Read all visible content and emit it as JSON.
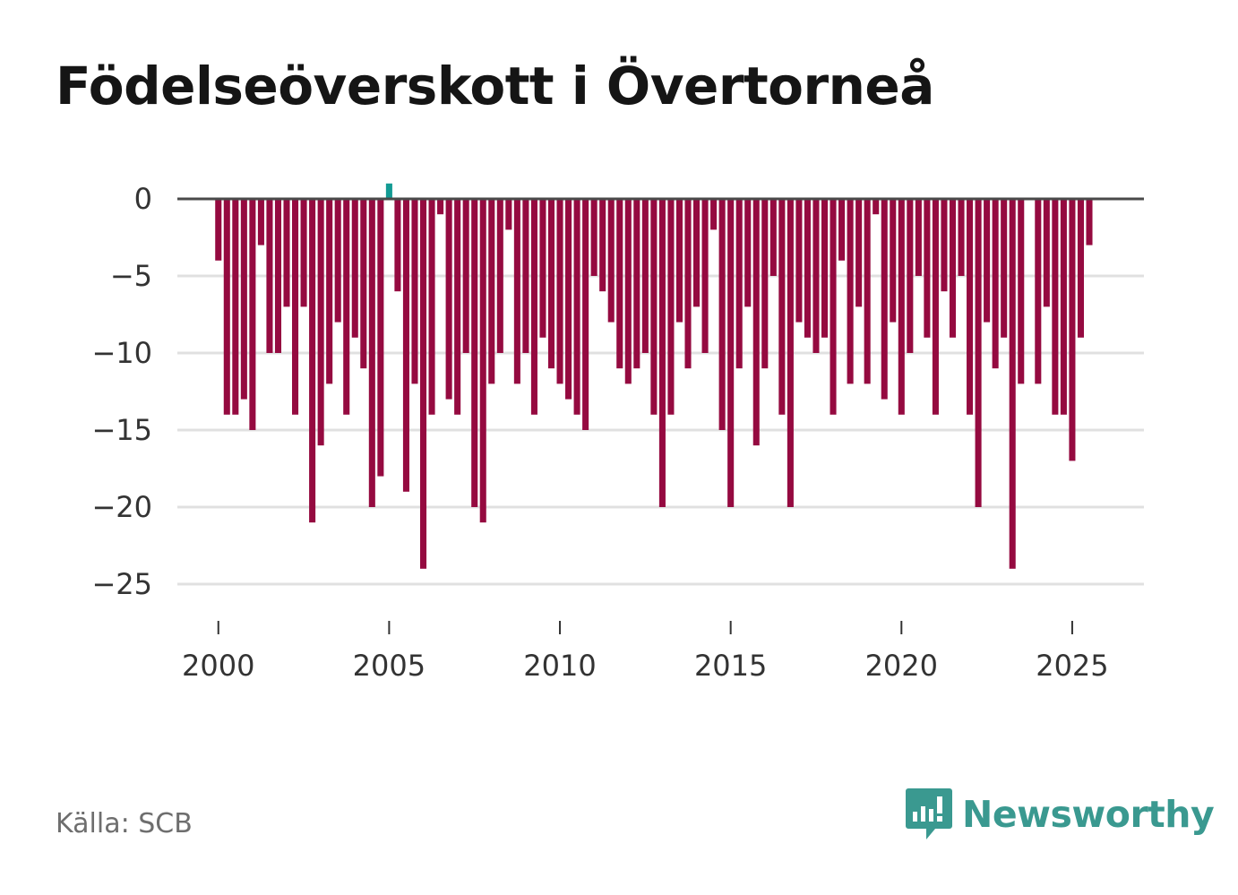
{
  "title": "Födelseöverskott i Övertorneå",
  "source": "Källa: SCB",
  "brand": {
    "name": "Newsworthy",
    "icon": "newsworthy-logo-icon"
  },
  "colors": {
    "negative": "#950a40",
    "positive": "#139b94",
    "zero_line": "#4a4a4a",
    "grid": "#e0e0e0",
    "brand": "#3a9990"
  },
  "chart_data": {
    "type": "bar",
    "title": "Födelseöverskott i Övertorneå",
    "xlabel": "",
    "ylabel": "",
    "frequency": "quarterly",
    "x_start": 2000.0,
    "x_step": 0.25,
    "xlim": [
      1998.8,
      2027.1
    ],
    "ylim": [
      -27,
      0.8
    ],
    "y_ticks": [
      0,
      -5,
      -10,
      -15,
      -20,
      -25
    ],
    "y_tick_labels": [
      "0",
      "−5",
      "−10",
      "−15",
      "−20",
      "−25"
    ],
    "x_ticks": [
      2000,
      2005,
      2010,
      2015,
      2020,
      2025
    ],
    "x_tick_labels": [
      "2000",
      "2005",
      "2010",
      "2015",
      "2020",
      "2025"
    ],
    "values": [
      -4,
      -14,
      -14,
      -13,
      -15,
      -3,
      -10,
      -10,
      -7,
      -14,
      -7,
      -21,
      -16,
      -12,
      -8,
      -14,
      -9,
      -11,
      -20,
      -18,
      1,
      -6,
      -19,
      -12,
      -24,
      -14,
      -1,
      -13,
      -14,
      -10,
      -20,
      -21,
      -12,
      -10,
      -2,
      -12,
      -10,
      -14,
      -9,
      -11,
      -12,
      -13,
      -14,
      -15,
      -5,
      -6,
      -8,
      -11,
      -12,
      -11,
      -10,
      -14,
      -20,
      -14,
      -8,
      -11,
      -7,
      -10,
      -2,
      -15,
      -20,
      -11,
      -7,
      -16,
      -11,
      -5,
      -14,
      -20,
      -8,
      -9,
      -10,
      -9,
      -14,
      -4,
      -12,
      -7,
      -12,
      -1,
      -13,
      -8,
      -14,
      -10,
      -5,
      -9,
      -14,
      -6,
      -9,
      -5,
      -14,
      -20,
      -8,
      -11,
      -9,
      -24,
      -12,
      0,
      -12,
      -7,
      -14,
      -14,
      -17,
      -9,
      -3
    ]
  }
}
